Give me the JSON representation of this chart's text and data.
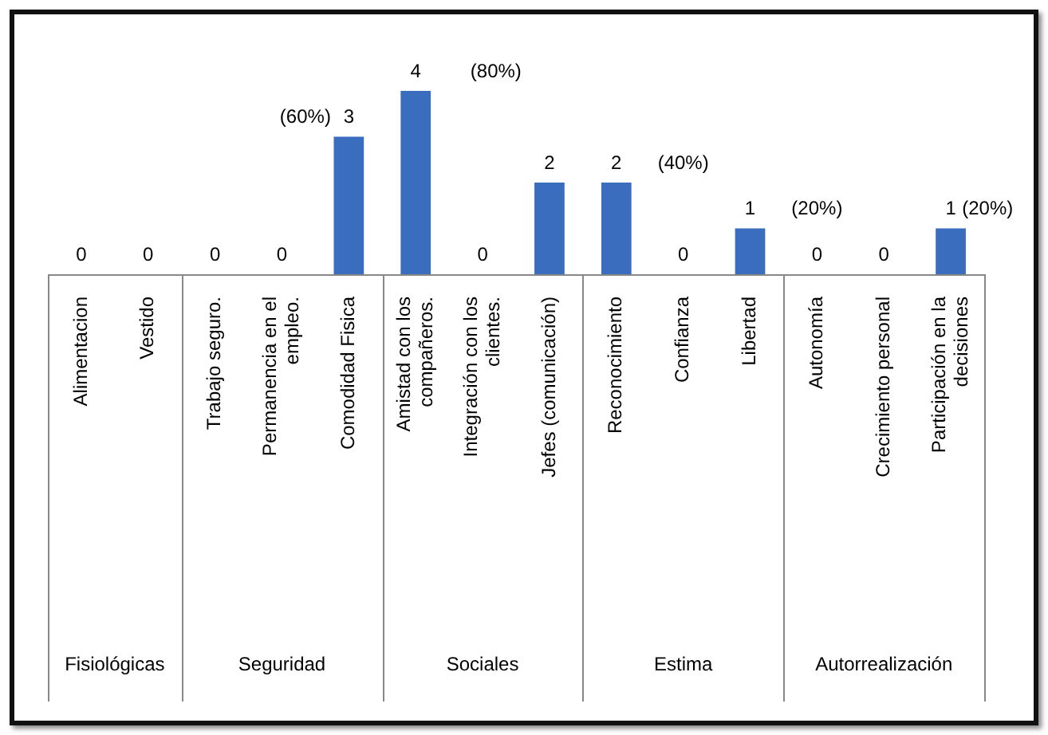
{
  "chart_data": {
    "type": "bar",
    "categories": [
      "Alimentacion",
      "Vestido",
      "Trabajo seguro.",
      "Permanencia en el empleo.",
      "Comodidad Fisica",
      "Amistad con los compañeros.",
      "Integración con los clientes.",
      "Jefes (comunicación)",
      "Reconocimiento",
      "Confianza",
      "Libertad",
      "Autonomía",
      "Crecimiento personal",
      "Participación en la decisiones"
    ],
    "values": [
      0,
      0,
      0,
      0,
      3,
      4,
      0,
      2,
      2,
      0,
      1,
      0,
      0,
      1
    ],
    "color": "#3a6dbd",
    "data_labels": true,
    "annotations": [
      "(60%)",
      "(80%)",
      "(40%)",
      "(20%)",
      "(20%)",
      "Fisiológicas",
      "Seguridad",
      "Sociales",
      "Estima",
      "Autorrealización"
    ]
  }
}
